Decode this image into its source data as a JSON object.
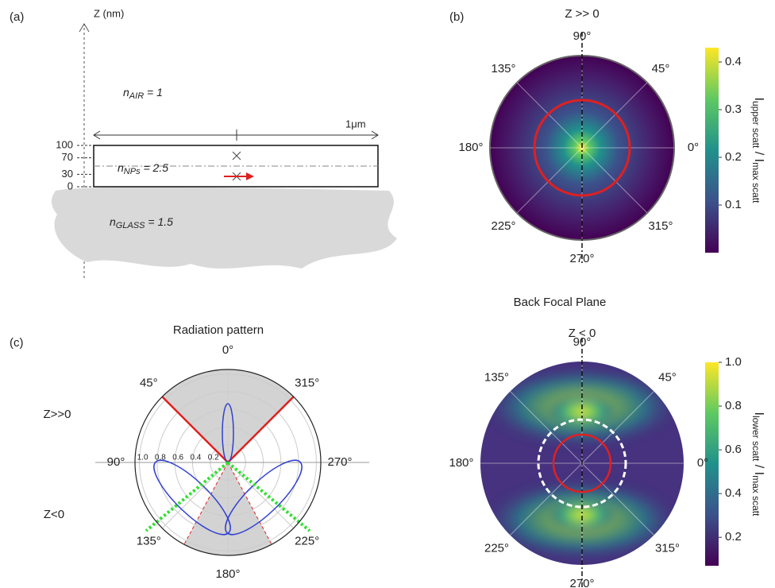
{
  "panel_a": {
    "label": "(a)",
    "z_axis": "Z (nm)",
    "air": {
      "symbol": "n",
      "subscript": "AIR",
      "text": " = 1"
    },
    "width": "1μm",
    "z_ticks": [
      100,
      70,
      30,
      0
    ],
    "nps": {
      "symbol": "n",
      "subscript": "NPs",
      "text": " = 2.5"
    },
    "glass": {
      "symbol": "n",
      "subscript": "GLASS",
      "text": " = 1.5"
    }
  },
  "panel_b": {
    "label": "(b)",
    "upper": {
      "title": "Z >> 0",
      "angles": [
        "90°",
        "45°",
        "0°",
        "315°",
        "270°",
        "225°",
        "180°",
        "135°"
      ],
      "colorbar": {
        "lim": [
          0,
          0.43
        ],
        "ticks": [
          0.1,
          0.2,
          0.3,
          0.4
        ],
        "label": {
          "main": "I",
          "sub": "upper scatt",
          "sep": " / ",
          "main2": "I",
          "sub2": "max scatt"
        }
      }
    },
    "section_title": "Back Focal Plane",
    "lower": {
      "title": "Z < 0",
      "angles": [
        "90°",
        "45°",
        "0°",
        "315°",
        "270°",
        "225°",
        "180°",
        "135°"
      ],
      "colorbar": {
        "lim": [
          0.07,
          1.0
        ],
        "ticks": [
          0.2,
          0.4,
          0.6,
          0.8,
          {
            "value": 1,
            "label": "1.0"
          }
        ],
        "label": {
          "main": "I",
          "sub": "lower scatt",
          "sep": " / ",
          "main2": "I",
          "sub2": "max scatt"
        }
      }
    }
  },
  "panel_c": {
    "label": "(c)",
    "title": "Radiation pattern",
    "angles": [
      "0°",
      "45°",
      "90°",
      "135°",
      "180°",
      "225°",
      "270°",
      "315°"
    ],
    "rlim": [
      0,
      1.05
    ],
    "rticks": [
      {
        "value": 1,
        "label": "1.0"
      },
      0.8,
      0.6,
      0.4,
      0.2
    ],
    "upper_label": "Z>>0",
    "lower_label": "Z<0"
  }
}
